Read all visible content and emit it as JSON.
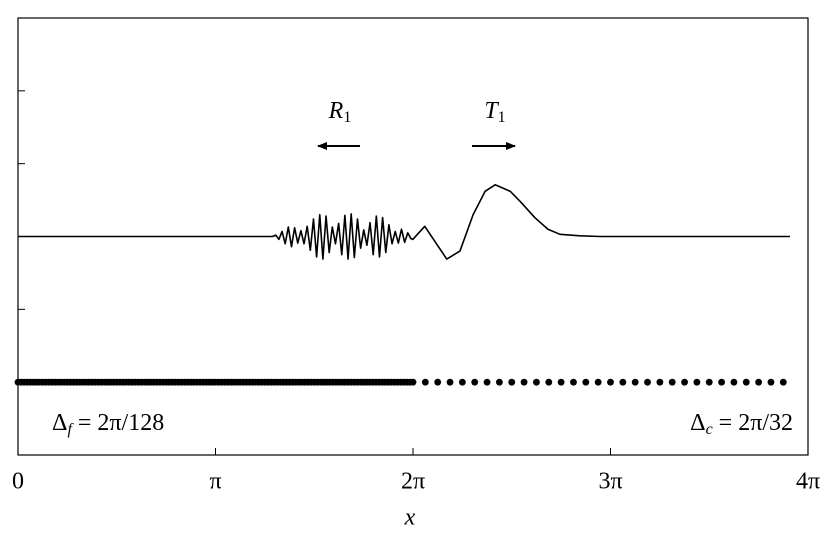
{
  "chart_data": {
    "type": "line",
    "x_label": "x",
    "xlim": [
      0,
      12.5664
    ],
    "ylim": [
      -3,
      3
    ],
    "xticks": [
      0,
      {
        "value": 3.1416,
        "label": "π"
      },
      {
        "value": 6.2832,
        "label": "2π"
      },
      {
        "value": 9.4248,
        "label": "3π"
      },
      {
        "value": 12.5664,
        "label": "4π"
      }
    ],
    "yticks": [
      -3,
      -2,
      -1,
      0,
      1,
      2,
      3
    ],
    "series": [
      {
        "color": "#000000",
        "x": [
          0,
          4.05,
          4.1,
          4.15,
          4.2,
          4.25,
          4.3,
          4.35,
          4.4,
          4.45,
          4.5,
          4.55,
          4.6,
          4.65,
          4.7,
          4.75,
          4.8,
          4.85,
          4.9,
          4.95,
          5.0,
          5.05,
          5.1,
          5.15,
          5.2,
          5.25,
          5.3,
          5.35,
          5.4,
          5.45,
          5.5,
          5.55,
          5.6,
          5.65,
          5.7,
          5.75,
          5.8,
          5.85,
          5.9,
          5.95,
          6.0,
          6.05,
          6.1,
          6.15,
          6.2,
          6.25,
          6.28,
          6.47,
          6.82,
          7.03,
          7.24,
          7.43,
          7.59,
          7.83,
          7.99,
          8.22,
          8.43,
          8.62,
          8.94,
          9.26,
          12.28
        ],
        "values": [
          0,
          0,
          0.02,
          -0.04,
          0.07,
          -0.1,
          0.13,
          -0.14,
          0.12,
          -0.09,
          0.08,
          -0.1,
          0.14,
          -0.19,
          0.24,
          -0.28,
          0.3,
          -0.31,
          0.28,
          -0.22,
          0.13,
          -0.1,
          0.18,
          -0.25,
          0.29,
          -0.31,
          0.31,
          -0.29,
          0.24,
          -0.16,
          0.09,
          -0.12,
          0.19,
          -0.25,
          0.28,
          -0.28,
          0.26,
          -0.22,
          0.16,
          -0.1,
          0.07,
          -0.09,
          0.1,
          -0.08,
          0.05,
          -0.03,
          -0.04,
          0.14,
          -0.31,
          -0.2,
          0.3,
          0.62,
          0.71,
          0.62,
          0.48,
          0.26,
          0.1,
          0.03,
          0.01,
          0,
          0
        ]
      }
    ],
    "grids": [
      {
        "start": 0,
        "end": 6.2832,
        "step": 0.049087,
        "y": -2,
        "label": {
          "symbol": "Δ",
          "subscript": "f",
          "text": " = 2π/128"
        }
      },
      {
        "start": 6.4795,
        "end": 12.1737,
        "step": 0.19635,
        "y": -2,
        "label": {
          "symbol": "Δ",
          "subscript": "c",
          "text": " = 2π/32"
        }
      }
    ],
    "annotations": [
      {
        "symbol": "R",
        "subscript": "1"
      },
      {
        "symbol": "T",
        "subscript": "1"
      }
    ]
  }
}
